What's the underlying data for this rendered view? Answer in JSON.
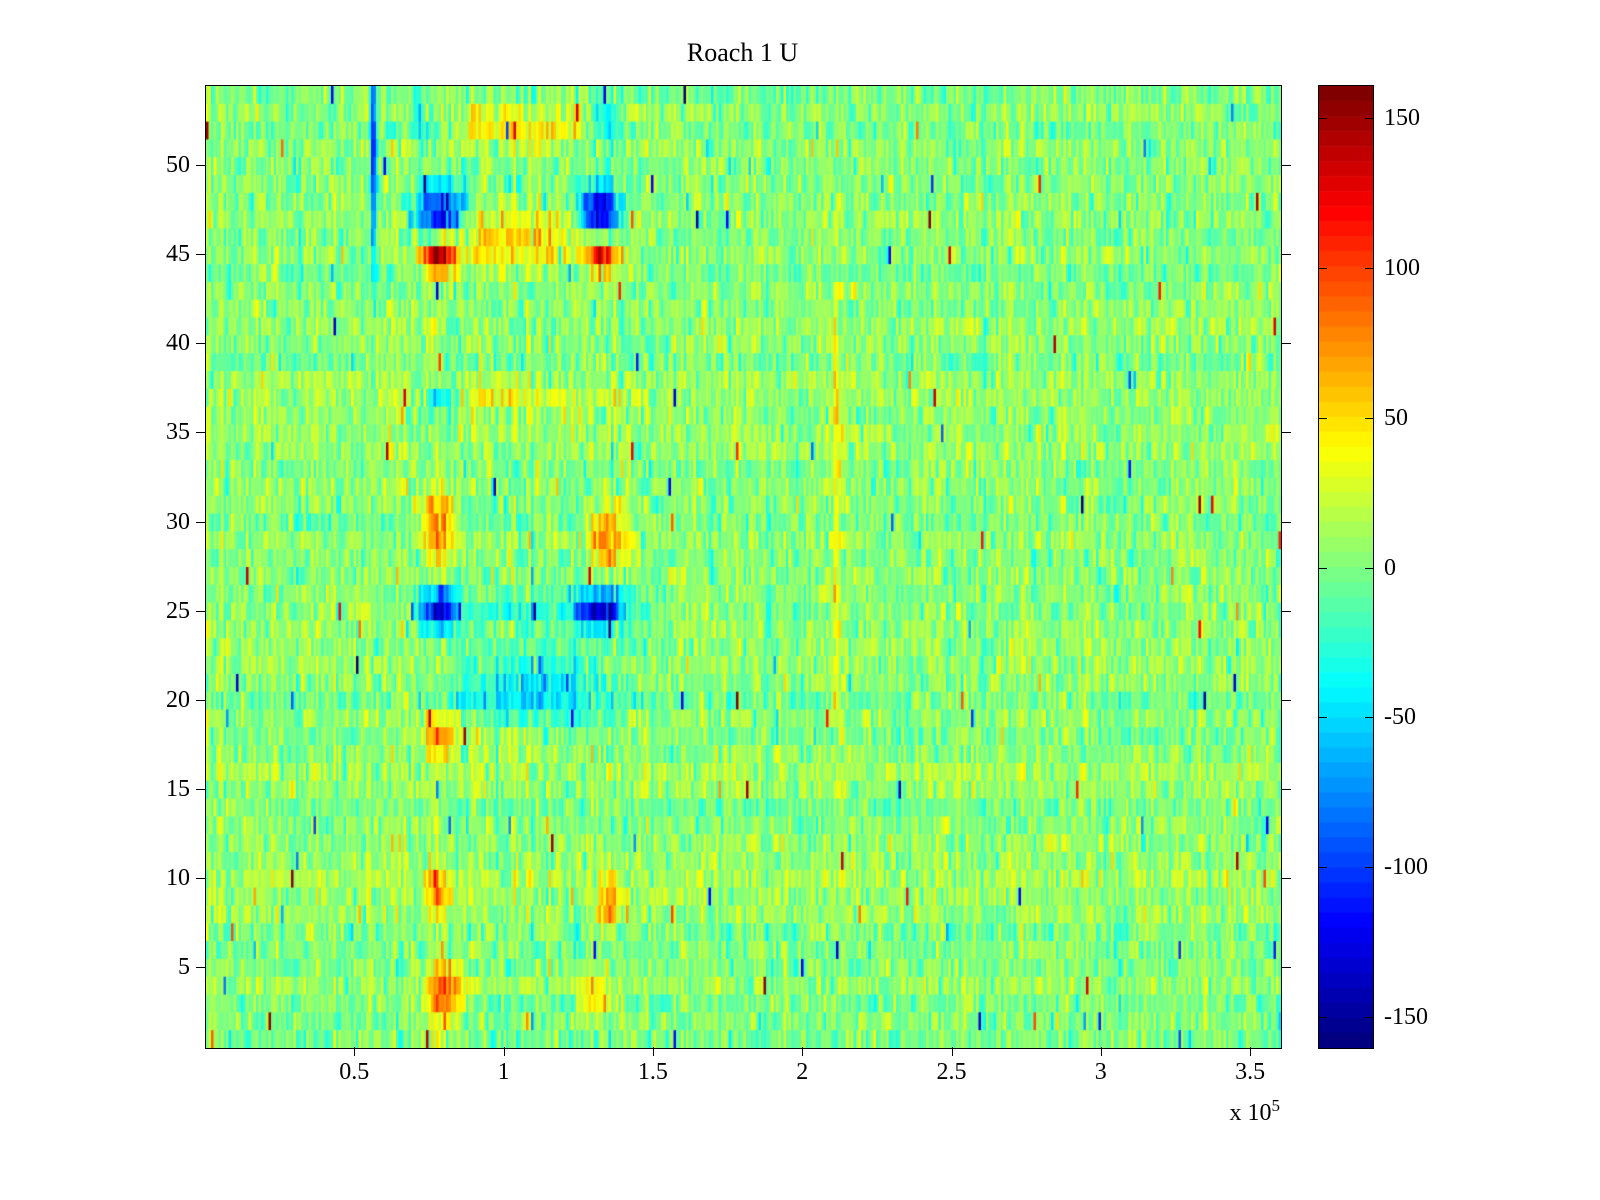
{
  "chart_data": {
    "type": "heatmap",
    "title": "Roach 1 U",
    "xlabel": "",
    "ylabel": "",
    "xlim": [
      0,
      360000
    ],
    "ylim": [
      0.5,
      54.5
    ],
    "x_ticks": [
      50000,
      100000,
      150000,
      200000,
      250000,
      300000,
      350000
    ],
    "x_tick_labels": [
      "0.5",
      "1",
      "1.5",
      "2",
      "2.5",
      "3",
      "3.5"
    ],
    "x_exponent": {
      "prefix": "x 10",
      "exp": "5"
    },
    "y_ticks": [
      5,
      10,
      15,
      20,
      25,
      30,
      35,
      40,
      45,
      50
    ],
    "y_tick_labels": [
      "5",
      "10",
      "15",
      "20",
      "25",
      "30",
      "35",
      "40",
      "45",
      "50"
    ],
    "colorbar": {
      "colormap": "jet",
      "min": -160,
      "max": 161,
      "levels": 64,
      "ticks": [
        150,
        100,
        50,
        0,
        -50,
        -100,
        -150
      ],
      "tick_labels": [
        "150",
        "100",
        "50",
        "0",
        "-50",
        "-100",
        "-150"
      ]
    },
    "grid": {
      "rows": 54,
      "cols": 430
    },
    "noise": {
      "seed": 20240613,
      "mean": 3,
      "sd": 15,
      "row_band_sd": 4,
      "column_streak_sd": 8,
      "column_streak_weight": 0.6,
      "outlier_prob": 0.006,
      "outlier_min": 60,
      "outlier_max": 155,
      "active_x0": 60000,
      "active_x1": 150000,
      "active_extra_sd": 8
    },
    "features": [
      {
        "x": 78000,
        "y": 47.3,
        "rx": 5500,
        "ry": 1.1,
        "amplitude": -155
      },
      {
        "x": 132000,
        "y": 47.3,
        "rx": 4500,
        "ry": 1.1,
        "amplitude": -150
      },
      {
        "x": 105000,
        "y": 46.3,
        "rx": 20000,
        "ry": 0.7,
        "amplitude": 45
      },
      {
        "x": 78000,
        "y": 45.0,
        "rx": 4500,
        "ry": 0.8,
        "amplitude": 135
      },
      {
        "x": 133000,
        "y": 45.0,
        "rx": 3500,
        "ry": 0.8,
        "amplitude": 135
      },
      {
        "x": 105000,
        "y": 44.8,
        "rx": 18000,
        "ry": 0.7,
        "amplitude": 35
      },
      {
        "x": 105000,
        "y": 52.2,
        "rx": 20000,
        "ry": 0.8,
        "amplitude": 48
      },
      {
        "x": 73000,
        "y": 52.2,
        "rx": 3500,
        "ry": 0.8,
        "amplitude": -45
      },
      {
        "x": 133000,
        "y": 52.4,
        "rx": 4500,
        "ry": 0.9,
        "amplitude": -55
      },
      {
        "x": 100000,
        "y": 37.0,
        "rx": 28000,
        "ry": 0.55,
        "amplitude": 30
      },
      {
        "x": 78000,
        "y": 37.0,
        "rx": 4000,
        "ry": 0.6,
        "amplitude": -80
      },
      {
        "x": 78000,
        "y": 29.6,
        "rx": 3800,
        "ry": 1.4,
        "amplitude": 85
      },
      {
        "x": 135000,
        "y": 29.2,
        "rx": 3800,
        "ry": 1.4,
        "amplitude": 85
      },
      {
        "x": 78000,
        "y": 25.2,
        "rx": 4200,
        "ry": 0.8,
        "amplitude": -140
      },
      {
        "x": 132000,
        "y": 25.2,
        "rx": 5500,
        "ry": 0.8,
        "amplitude": -140
      },
      {
        "x": 105000,
        "y": 25.0,
        "rx": 18000,
        "ry": 0.6,
        "amplitude": -35
      },
      {
        "x": 110000,
        "y": 20.0,
        "rx": 18000,
        "ry": 1.3,
        "amplitude": -40
      },
      {
        "x": 112000,
        "y": 22.0,
        "rx": 15000,
        "ry": 1.0,
        "amplitude": -30
      },
      {
        "x": 78000,
        "y": 18.0,
        "rx": 3800,
        "ry": 0.9,
        "amplitude": 75
      },
      {
        "x": 100000,
        "y": 17.8,
        "rx": 20000,
        "ry": 0.6,
        "amplitude": 25
      },
      {
        "x": 78000,
        "y": 9.5,
        "rx": 3000,
        "ry": 1.0,
        "amplitude": 70
      },
      {
        "x": 135000,
        "y": 8.7,
        "rx": 3200,
        "ry": 1.0,
        "amplitude": 75
      },
      {
        "x": 80000,
        "y": 3.5,
        "rx": 4200,
        "ry": 1.3,
        "amplitude": 90
      },
      {
        "x": 131000,
        "y": 3.6,
        "rx": 3800,
        "ry": 1.0,
        "amplitude": 55
      },
      {
        "x": 56000,
        "y": 50.5,
        "rx": 800,
        "ry": 4.0,
        "amplitude": -110
      },
      {
        "x": 211000,
        "y": 32.0,
        "rx": 900,
        "ry": 10.0,
        "amplitude": 55
      }
    ]
  }
}
